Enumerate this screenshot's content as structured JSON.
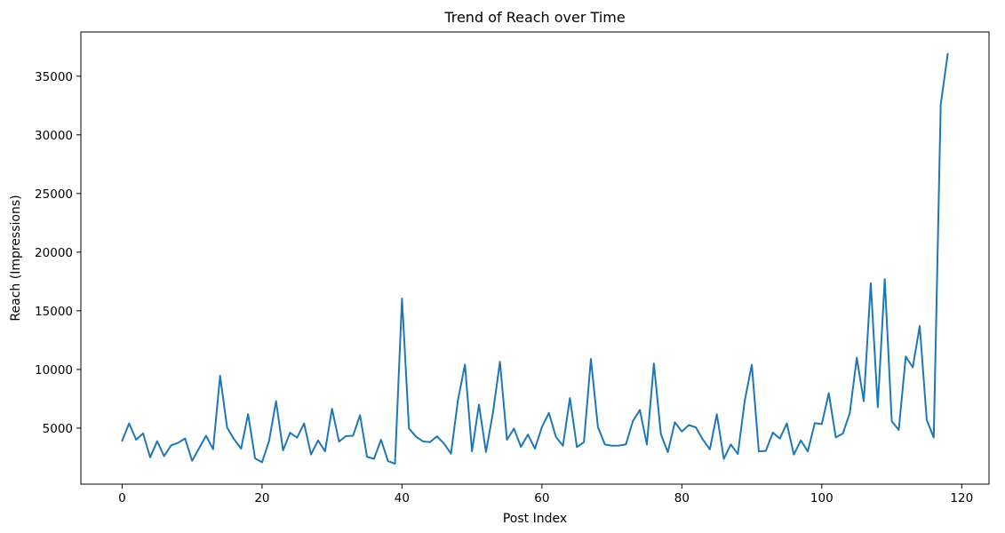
{
  "chart_data": {
    "type": "line",
    "title": "Trend of Reach over Time",
    "xlabel": "Post Index",
    "ylabel": "Reach (Impressions)",
    "xlim": [
      -5.9,
      123.9
    ],
    "ylim": [
      222,
      38770
    ],
    "x_ticks": [
      0,
      20,
      40,
      60,
      80,
      100,
      120
    ],
    "y_ticks": [
      5000,
      10000,
      15000,
      20000,
      25000,
      30000,
      35000
    ],
    "grid": false,
    "legend": "none",
    "line_color": "#1f77b4",
    "series": [
      {
        "x": [
          0,
          1,
          2,
          3,
          4,
          5,
          6,
          7,
          8,
          9,
          10,
          11,
          12,
          13,
          14,
          15,
          16,
          17,
          18,
          19,
          20,
          21,
          22,
          23,
          24,
          25,
          26,
          27,
          28,
          29,
          30,
          31,
          32,
          33,
          34,
          35,
          36,
          37,
          38,
          39,
          40,
          41,
          42,
          43,
          44,
          45,
          46,
          47,
          48,
          49,
          50,
          51,
          52,
          53,
          54,
          55,
          56,
          57,
          58,
          59,
          60,
          61,
          62,
          63,
          64,
          65,
          66,
          67,
          68,
          69,
          70,
          71,
          72,
          73,
          74,
          75,
          76,
          77,
          78,
          79,
          80,
          81,
          82,
          83,
          84,
          85,
          86,
          87,
          88,
          89,
          90,
          91,
          92,
          93,
          94,
          95,
          96,
          97,
          98,
          99,
          100,
          101,
          102,
          103,
          104,
          105,
          106,
          107,
          108,
          109,
          110,
          111,
          112,
          113,
          114,
          115,
          116,
          117,
          118
        ],
        "values": [
          3920,
          5400,
          4010,
          4550,
          2510,
          3880,
          2610,
          3530,
          3750,
          4110,
          2210,
          3280,
          4350,
          3200,
          9460,
          5050,
          4050,
          3250,
          6190,
          2420,
          2090,
          3900,
          7300,
          3100,
          4600,
          4180,
          5400,
          2750,
          3950,
          3020,
          6650,
          3850,
          4320,
          4350,
          6100,
          2550,
          2380,
          4010,
          2190,
          1960,
          16050,
          4970,
          4270,
          3870,
          3800,
          4300,
          3680,
          2820,
          7400,
          10420,
          3020,
          7010,
          2960,
          6320,
          10650,
          4000,
          4960,
          3400,
          4450,
          3250,
          5090,
          6300,
          4250,
          3500,
          7560,
          3380,
          3800,
          10900,
          5100,
          3600,
          3500,
          3510,
          3610,
          5600,
          6540,
          3600,
          10500,
          4480,
          2950,
          5500,
          4710,
          5260,
          5060,
          4020,
          3190,
          6180,
          2380,
          3610,
          2790,
          7380,
          10400,
          3010,
          3060,
          4620,
          4110,
          5400,
          2750,
          3950,
          3010,
          5430,
          5340,
          7980,
          4210,
          4530,
          6280,
          11000,
          7290,
          17350,
          6780,
          17700,
          5580,
          4840,
          11100,
          10180,
          13700,
          5690,
          4190,
          32600,
          36900
        ]
      }
    ]
  }
}
